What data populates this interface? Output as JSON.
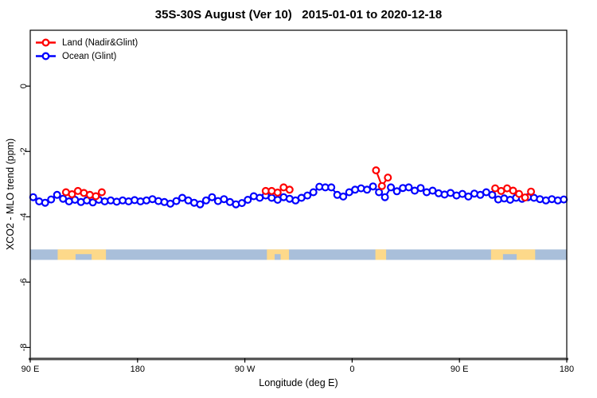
{
  "chart_data": {
    "type": "line",
    "title": "35S-30S August (Ver 10)   2015-01-01 to 2020-12-18",
    "xlabel": "Longitude (deg E)",
    "ylabel": "XCO2 - MLO trend (ppm)",
    "xlim": [
      90,
      540
    ],
    "ylim": [
      -8.33,
      1.71
    ],
    "grid": false,
    "legend_position": "top-left",
    "x_ticks": [
      {
        "value": 90,
        "label": "90 E"
      },
      {
        "value": 180,
        "label": "180"
      },
      {
        "value": 270,
        "label": "90 W"
      },
      {
        "value": 360,
        "label": "0"
      },
      {
        "value": 450,
        "label": "90 E"
      },
      {
        "value": 540,
        "label": "180"
      }
    ],
    "y_ticks": [
      {
        "value": 0,
        "label": "0"
      },
      {
        "value": -2,
        "label": "-2"
      },
      {
        "value": -4,
        "label": "-4"
      },
      {
        "value": -6,
        "label": "-6"
      },
      {
        "value": -8,
        "label": "-8"
      }
    ],
    "series": [
      {
        "name": "Ocean (Glint)",
        "color": "#0000ff",
        "marker": "open-circle",
        "segments": [
          [
            [
              92.5,
              -3.4
            ],
            [
              97.5,
              -3.53
            ],
            [
              102.5,
              -3.57
            ],
            [
              107.5,
              -3.47
            ],
            [
              112.5,
              -3.33
            ],
            [
              117.5,
              -3.45
            ],
            [
              122.5,
              -3.53
            ],
            [
              127.5,
              -3.48
            ],
            [
              132.5,
              -3.55
            ],
            [
              137.5,
              -3.5
            ],
            [
              142.5,
              -3.56
            ],
            [
              147.5,
              -3.48
            ],
            [
              152.5,
              -3.53
            ],
            [
              157.5,
              -3.5
            ],
            [
              162.5,
              -3.54
            ],
            [
              167.5,
              -3.5
            ],
            [
              172.5,
              -3.53
            ],
            [
              177.5,
              -3.49
            ],
            [
              182.5,
              -3.53
            ],
            [
              187.5,
              -3.5
            ],
            [
              192.5,
              -3.46
            ],
            [
              197.5,
              -3.52
            ],
            [
              202.5,
              -3.55
            ],
            [
              207.5,
              -3.6
            ],
            [
              212.5,
              -3.52
            ],
            [
              217.5,
              -3.42
            ],
            [
              222.5,
              -3.5
            ],
            [
              227.5,
              -3.57
            ],
            [
              232.5,
              -3.62
            ],
            [
              237.5,
              -3.5
            ],
            [
              242.5,
              -3.4
            ],
            [
              247.5,
              -3.52
            ],
            [
              252.5,
              -3.46
            ],
            [
              257.5,
              -3.55
            ],
            [
              262.5,
              -3.62
            ],
            [
              267.5,
              -3.58
            ],
            [
              272.5,
              -3.48
            ],
            [
              277.5,
              -3.37
            ],
            [
              282.5,
              -3.42
            ],
            [
              287.5,
              -3.35
            ],
            [
              292.5,
              -3.42
            ],
            [
              297.5,
              -3.48
            ],
            [
              302.5,
              -3.4
            ],
            [
              307.5,
              -3.45
            ],
            [
              312.5,
              -3.5
            ],
            [
              317.5,
              -3.42
            ],
            [
              322.5,
              -3.35
            ],
            [
              327.5,
              -3.25
            ],
            [
              332.5,
              -3.08
            ],
            [
              337.5,
              -3.1
            ],
            [
              342.5,
              -3.1
            ],
            [
              347.5,
              -3.33
            ],
            [
              352.5,
              -3.38
            ],
            [
              357.5,
              -3.25
            ],
            [
              362.5,
              -3.17
            ],
            [
              367.5,
              -3.13
            ],
            [
              372.5,
              -3.17
            ],
            [
              377.5,
              -3.07
            ],
            [
              382.5,
              -3.25
            ],
            [
              387.5,
              -3.4
            ],
            [
              392.5,
              -3.1
            ],
            [
              397.5,
              -3.22
            ],
            [
              402.5,
              -3.12
            ],
            [
              407.5,
              -3.1
            ],
            [
              412.5,
              -3.2
            ],
            [
              417.5,
              -3.12
            ],
            [
              422.5,
              -3.25
            ],
            [
              427.5,
              -3.2
            ],
            [
              432.5,
              -3.28
            ],
            [
              437.5,
              -3.32
            ],
            [
              442.5,
              -3.27
            ],
            [
              447.5,
              -3.35
            ],
            [
              452.5,
              -3.3
            ],
            [
              457.5,
              -3.38
            ],
            [
              462.5,
              -3.29
            ],
            [
              467.5,
              -3.33
            ],
            [
              472.5,
              -3.25
            ],
            [
              477.5,
              -3.33
            ],
            [
              482.5,
              -3.47
            ],
            [
              487.5,
              -3.44
            ],
            [
              492.5,
              -3.48
            ],
            [
              497.5,
              -3.42
            ],
            [
              502.5,
              -3.45
            ],
            [
              507.5,
              -3.4
            ],
            [
              512.5,
              -3.42
            ],
            [
              517.5,
              -3.46
            ],
            [
              522.5,
              -3.5
            ],
            [
              527.5,
              -3.46
            ],
            [
              532.5,
              -3.5
            ],
            [
              537.5,
              -3.47
            ]
          ]
        ]
      },
      {
        "name": "Land (Nadir&Glint)",
        "color": "#ff0000",
        "marker": "open-circle",
        "segments": [
          [
            [
              120,
              -3.25
            ],
            [
              125,
              -3.31
            ],
            [
              130,
              -3.21
            ],
            [
              135,
              -3.27
            ],
            [
              140,
              -3.33
            ],
            [
              145,
              -3.37
            ],
            [
              150,
              -3.25
            ]
          ],
          [
            [
              287.5,
              -3.21
            ],
            [
              292.5,
              -3.21
            ],
            [
              297.5,
              -3.26
            ],
            [
              302.5,
              -3.1
            ],
            [
              307.5,
              -3.17
            ]
          ],
          [
            [
              380,
              -2.58
            ],
            [
              385,
              -3.06
            ],
            [
              390,
              -2.8
            ]
          ],
          [
            [
              480,
              -3.13
            ],
            [
              485,
              -3.21
            ],
            [
              490,
              -3.13
            ],
            [
              495,
              -3.2
            ],
            [
              500,
              -3.3
            ],
            [
              505,
              -3.41
            ],
            [
              510,
              -3.23
            ]
          ]
        ]
      }
    ],
    "map_strip": {
      "description": "35S-30S latitude band map: ocean with land patches",
      "ocean_color": "#a9bfda",
      "land_color": "#fdd98a",
      "y_range": [
        -5.32,
        -5.0
      ],
      "land_patches": [
        {
          "from": 113,
          "to": 153.5,
          "label": "Australia"
        },
        {
          "from": 288.5,
          "to": 307,
          "label": "South America"
        },
        {
          "from": 379.5,
          "to": 388.5,
          "label": "South Africa"
        },
        {
          "from": 476.5,
          "to": 513.5,
          "label": "Australia"
        }
      ],
      "coast_notches": [
        {
          "from": 128,
          "to": 141.5
        },
        {
          "from": 295,
          "to": 300
        },
        {
          "from": 486.5,
          "to": 498
        }
      ]
    }
  },
  "legend": {
    "items": [
      {
        "label": "Land (Nadir&Glint)",
        "color": "#ff0000"
      },
      {
        "label": "Ocean (Glint)",
        "color": "#0000ff"
      }
    ]
  },
  "axis_colors": {
    "box": "#000000",
    "baseline": "#4d4d4d"
  }
}
